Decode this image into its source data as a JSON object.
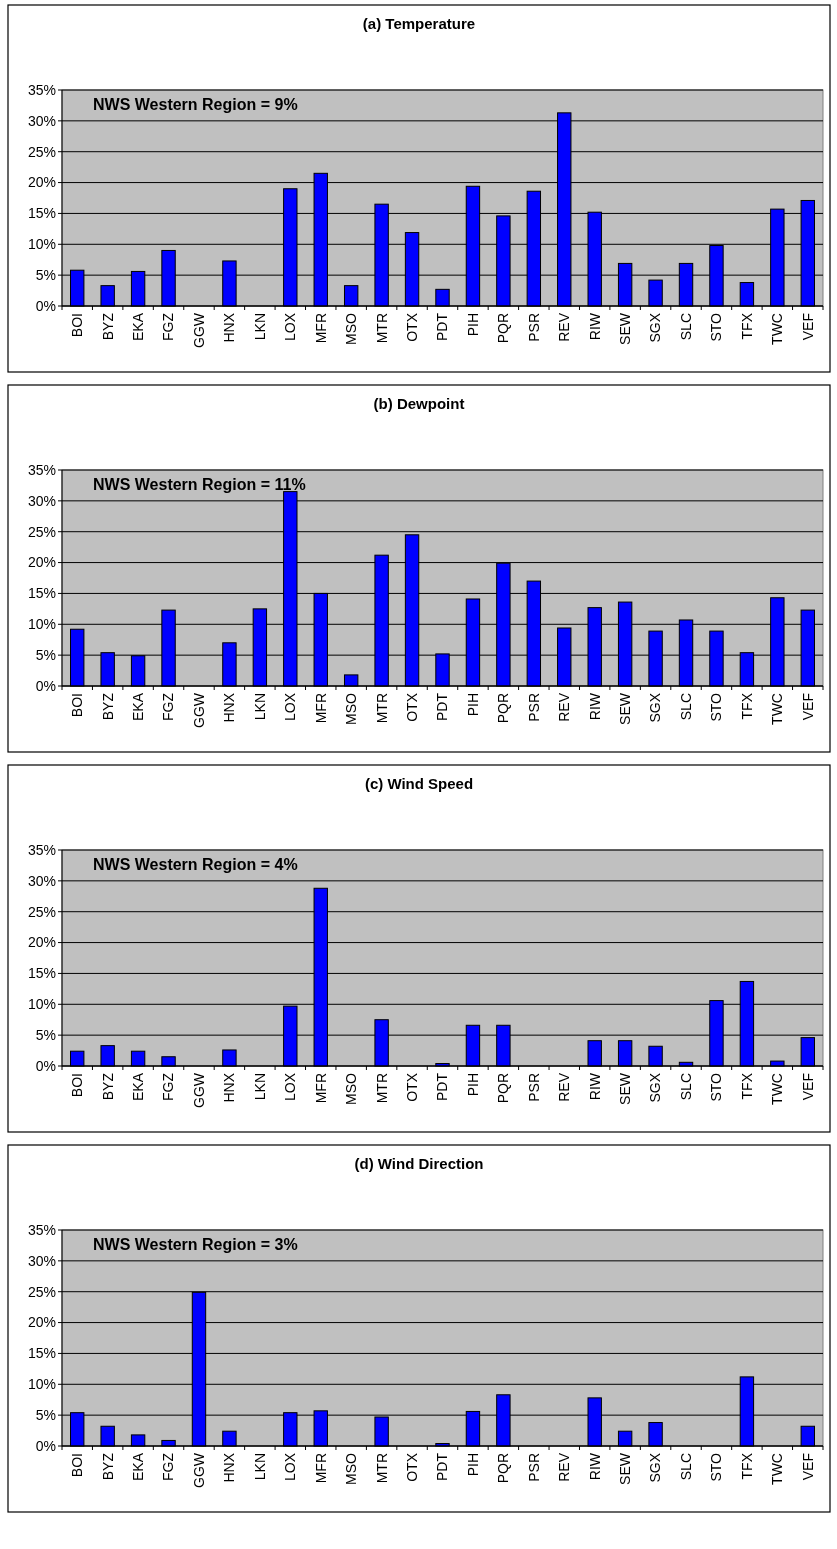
{
  "chart_data": [
    {
      "type": "bar",
      "title": "(a) Temperature",
      "categories": [
        "BOI",
        "BYZ",
        "EKA",
        "FGZ",
        "GGW",
        "HNX",
        "LKN",
        "LOX",
        "MFR",
        "MSO",
        "MTR",
        "OTX",
        "PDT",
        "PIH",
        "PQR",
        "PSR",
        "REV",
        "RIW",
        "SEW",
        "SGX",
        "SLC",
        "STO",
        "TFX",
        "TWC",
        "VEF"
      ],
      "values": [
        5.8,
        3.3,
        5.6,
        9,
        0,
        7.3,
        0,
        19,
        21.5,
        3.3,
        16.5,
        11.9,
        2.7,
        19.4,
        14.6,
        18.6,
        31.3,
        15.2,
        6.9,
        4.2,
        6.9,
        9.8,
        3.8,
        15.7,
        17.1
      ],
      "color": "#0000ff",
      "ylim": [
        0,
        35
      ],
      "yticks": [
        {
          "value": 0,
          "label": "0%"
        },
        {
          "value": 5,
          "label": "5%"
        },
        {
          "value": 10,
          "label": "10%"
        },
        {
          "value": 15,
          "label": "15%"
        },
        {
          "value": 20,
          "label": "20%"
        },
        {
          "value": 25,
          "label": "25%"
        },
        {
          "value": 30,
          "label": "30%"
        },
        {
          "value": 35,
          "label": "35%"
        }
      ],
      "grid": "y",
      "annotations": [
        "NWS Western Region = 9%"
      ]
    },
    {
      "type": "bar",
      "title": "(b) Dewpoint",
      "categories": [
        "BOI",
        "BYZ",
        "EKA",
        "FGZ",
        "GGW",
        "HNX",
        "LKN",
        "LOX",
        "MFR",
        "MSO",
        "MTR",
        "OTX",
        "PDT",
        "PIH",
        "PQR",
        "PSR",
        "REV",
        "RIW",
        "SEW",
        "SGX",
        "SLC",
        "STO",
        "TFX",
        "TWC",
        "VEF"
      ],
      "values": [
        9.2,
        5.4,
        4.9,
        12.3,
        0,
        7,
        12.5,
        31.5,
        15,
        1.8,
        21.2,
        24.5,
        5.2,
        14.1,
        19.9,
        17,
        9.4,
        12.7,
        13.6,
        8.9,
        10.7,
        8.9,
        5.4,
        14.3,
        12.3
      ],
      "color": "#0000ff",
      "ylim": [
        0,
        35
      ],
      "yticks": [
        {
          "value": 0,
          "label": "0%"
        },
        {
          "value": 5,
          "label": "5%"
        },
        {
          "value": 10,
          "label": "10%"
        },
        {
          "value": 15,
          "label": "15%"
        },
        {
          "value": 20,
          "label": "20%"
        },
        {
          "value": 25,
          "label": "25%"
        },
        {
          "value": 30,
          "label": "30%"
        },
        {
          "value": 35,
          "label": "35%"
        }
      ],
      "grid": "y",
      "annotations": [
        "NWS Western Region  = 11%"
      ]
    },
    {
      "type": "bar",
      "title": "(c) Wind Speed",
      "categories": [
        "BOI",
        "BYZ",
        "EKA",
        "FGZ",
        "GGW",
        "HNX",
        "LKN",
        "LOX",
        "MFR",
        "MSO",
        "MTR",
        "OTX",
        "PDT",
        "PIH",
        "PQR",
        "PSR",
        "REV",
        "RIW",
        "SEW",
        "SGX",
        "SLC",
        "STO",
        "TFX",
        "TWC",
        "VEF"
      ],
      "values": [
        2.4,
        3.3,
        2.4,
        1.5,
        0,
        2.6,
        0,
        9.7,
        28.8,
        0,
        7.5,
        0,
        0.4,
        6.6,
        6.6,
        0,
        0,
        4.1,
        4.1,
        3.2,
        0.6,
        10.6,
        13.7,
        0.8,
        4.6
      ],
      "color": "#0000ff",
      "ylim": [
        0,
        35
      ],
      "yticks": [
        {
          "value": 0,
          "label": "0%"
        },
        {
          "value": 5,
          "label": "5%"
        },
        {
          "value": 10,
          "label": "10%"
        },
        {
          "value": 15,
          "label": "15%"
        },
        {
          "value": 20,
          "label": "20%"
        },
        {
          "value": 25,
          "label": "25%"
        },
        {
          "value": 30,
          "label": "30%"
        },
        {
          "value": 35,
          "label": "35%"
        }
      ],
      "grid": "y",
      "annotations": [
        "NWS Western Region = 4%"
      ]
    },
    {
      "type": "bar",
      "title": "(d) Wind Direction",
      "categories": [
        "BOI",
        "BYZ",
        "EKA",
        "FGZ",
        "GGW",
        "HNX",
        "LKN",
        "LOX",
        "MFR",
        "MSO",
        "MTR",
        "OTX",
        "PDT",
        "PIH",
        "PQR",
        "PSR",
        "REV",
        "RIW",
        "SEW",
        "SGX",
        "SLC",
        "STO",
        "TFX",
        "TWC",
        "VEF"
      ],
      "values": [
        5.4,
        3.2,
        1.8,
        0.9,
        24.9,
        2.4,
        0,
        5.4,
        5.7,
        0,
        4.7,
        0,
        0.4,
        5.6,
        8.3,
        0,
        0,
        7.8,
        2.4,
        3.8,
        0,
        0,
        11.2,
        0,
        3.2
      ],
      "color": "#0000ff",
      "ylim": [
        0,
        35
      ],
      "yticks": [
        {
          "value": 0,
          "label": "0%"
        },
        {
          "value": 5,
          "label": "5%"
        },
        {
          "value": 10,
          "label": "10%"
        },
        {
          "value": 15,
          "label": "15%"
        },
        {
          "value": 20,
          "label": "20%"
        },
        {
          "value": 25,
          "label": "25%"
        },
        {
          "value": 30,
          "label": "30%"
        },
        {
          "value": 35,
          "label": "35%"
        }
      ],
      "grid": "y",
      "annotations": [
        "NWS Western Region = 3%"
      ]
    }
  ]
}
